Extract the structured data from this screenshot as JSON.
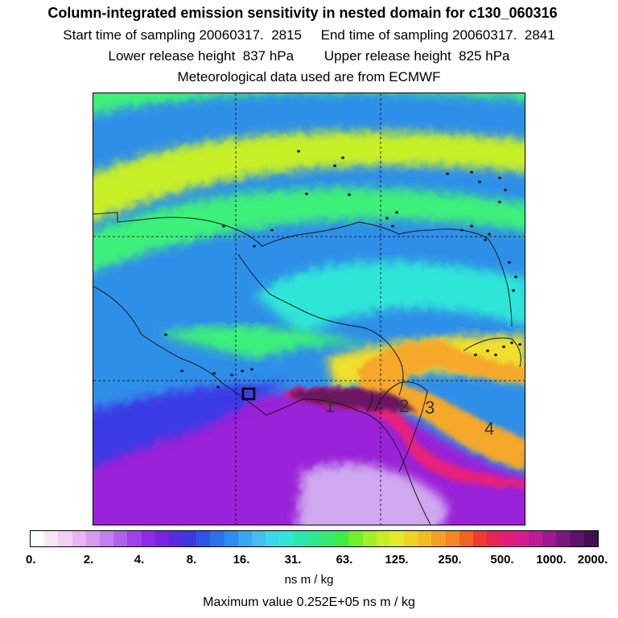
{
  "header": {
    "title": "Column-integrated emission sensitivity in nested domain for c130_060316",
    "line1": "Start time of sampling 20060317.  2815     End time of sampling 20060317.  2841",
    "line2": "Lower release height  837 hPa        Upper release height  825 hPa",
    "line3": "Meteorological data used are from ECMWF"
  },
  "map": {
    "region_labels": [
      "1",
      "2",
      "3",
      "4"
    ],
    "colors": {
      "deep_blue": "#3a3ae6",
      "blue": "#2f8fe8",
      "light_blue": "#49b8ee",
      "cyan": "#2fe6d8",
      "green": "#3ef07a",
      "yellow_green": "#c8f026",
      "yellow": "#f0e02a",
      "orange": "#f5a82a",
      "magenta": "#e8207a",
      "dark_purple": "#6a1460",
      "purple": "#9a22d8",
      "lavender": "#cfa8f0",
      "coastline": "#1a1a1a"
    }
  },
  "colorbar": {
    "tick_labels": [
      "0.",
      "2.",
      "4.",
      "8.",
      "16.",
      "31.",
      "63.",
      "125.",
      "250.",
      "500.",
      "1000.",
      "2000."
    ],
    "colors": [
      "#ffffff",
      "#f8e6f8",
      "#f0cff0",
      "#e8b5f2",
      "#d79af0",
      "#c47ef0",
      "#b261ee",
      "#a042ec",
      "#8e2ae6",
      "#7a22e2",
      "#5a2ae0",
      "#3c38e2",
      "#2f55e6",
      "#2a72ea",
      "#2a8ef0",
      "#3aa6f2",
      "#44bef0",
      "#3ad8e8",
      "#2ee8d4",
      "#2ee6b0",
      "#30e890",
      "#38ea6e",
      "#3cee42",
      "#70ef2a",
      "#a2ef28",
      "#c8ef26",
      "#e4ec26",
      "#f0d424",
      "#f4bc24",
      "#f4a024",
      "#f48424",
      "#f26224",
      "#ee3c30",
      "#e82454",
      "#e21c7a",
      "#d61c92",
      "#be1c98",
      "#9e1a8e",
      "#7e1680",
      "#5e1268",
      "#421050"
    ],
    "units": "ns m / kg"
  },
  "footer": {
    "max_value": "Maximum value  0.252E+05 ns m / kg"
  }
}
